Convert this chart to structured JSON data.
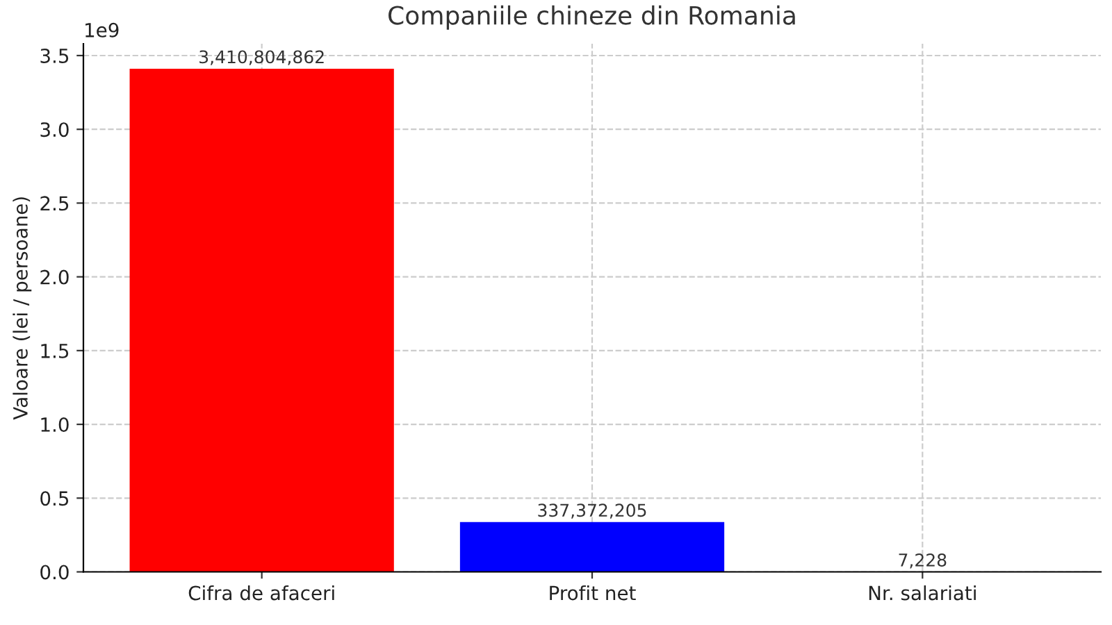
{
  "chart_data": {
    "type": "bar",
    "title": "Companiile chineze din Romania",
    "ylabel": "Valoare (lei / persoane)",
    "categories": [
      "Cifra de afaceri",
      "Profit net",
      "Nr. salariati"
    ],
    "values": [
      3.410804862,
      0.337372205,
      7.228e-06
    ],
    "colors": [
      "#ff0000",
      "#0000ff",
      "#008000"
    ],
    "ylim": [
      0,
      3.58
    ],
    "yticks": [
      {
        "value": 0,
        "label": "0.0"
      },
      0.5,
      {
        "value": 1,
        "label": "1.0"
      },
      1.5,
      {
        "value": 2,
        "label": "2.0"
      },
      2.5,
      {
        "value": 3,
        "label": "3.0"
      },
      3.5
    ],
    "annotations": [
      "1e9",
      {
        "text": "3,410,804,862",
        "x": "Cifra de afaceri",
        "y": 3.410804862
      },
      {
        "text": "337,372,205",
        "x": "Profit net",
        "y": 0.337372205
      },
      {
        "text": "7,228",
        "x": "Nr. salariati",
        "y": 7.228e-06
      }
    ],
    "grid": true,
    "legend": false
  }
}
